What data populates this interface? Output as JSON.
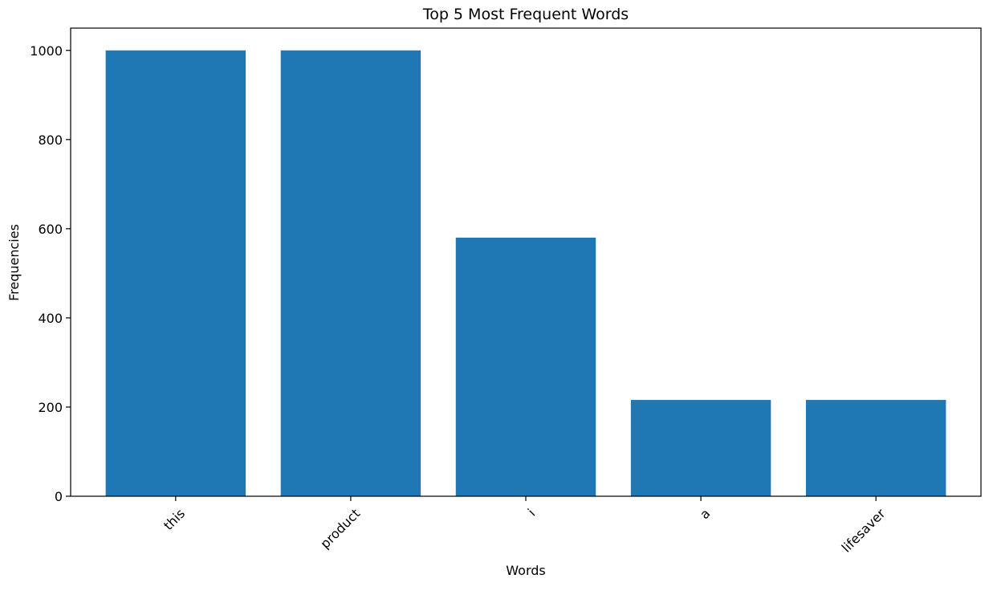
{
  "chart_data": {
    "type": "bar",
    "title": "Top 5 Most Frequent Words",
    "xlabel": "Words",
    "ylabel": "Frequencies",
    "categories": [
      "this",
      "product",
      "i",
      "a",
      "lifesaver"
    ],
    "values": [
      1000,
      1000,
      580,
      216,
      216
    ],
    "ylim": [
      0,
      1050
    ],
    "yticks": [
      0,
      200,
      400,
      600,
      800,
      1000
    ],
    "xtick_rotation_deg": 45,
    "grid": false,
    "legend": "none",
    "bar_color": "#1f77b4"
  }
}
